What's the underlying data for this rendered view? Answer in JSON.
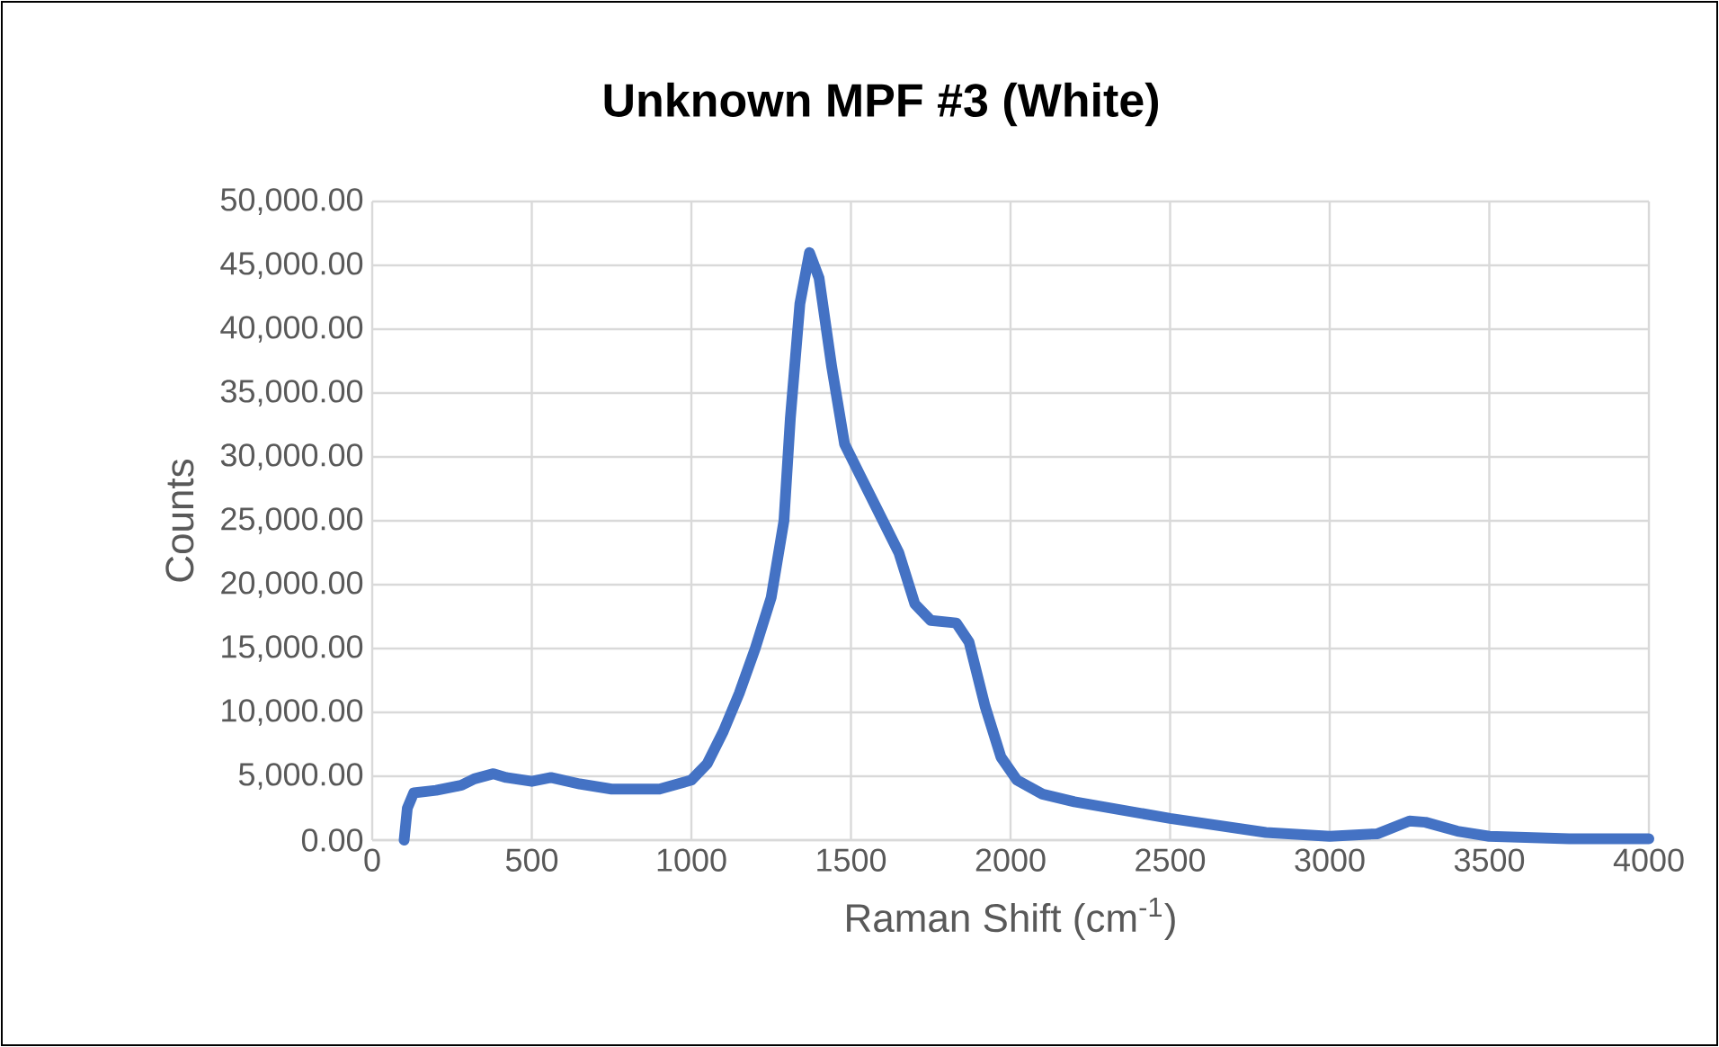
{
  "chart_data": {
    "type": "line",
    "title": "Unknown MPF #3 (White)",
    "xlabel": "Raman Shift (cm$^{-1}$)",
    "ylabel": "Counts",
    "xlim": [
      0,
      4000
    ],
    "xticks": [
      0,
      500,
      1000,
      1500,
      2000,
      2500,
      3000,
      3500,
      4000
    ],
    "ylim": [
      0,
      50000
    ],
    "yticks": [
      {
        "value": 0,
        "label": "0.00"
      },
      {
        "value": 5000,
        "label": "5,000.00"
      },
      {
        "value": 10000,
        "label": "10,000.00"
      },
      {
        "value": 15000,
        "label": "15,000.00"
      },
      {
        "value": 20000,
        "label": "20,000.00"
      },
      {
        "value": 25000,
        "label": "25,000.00"
      },
      {
        "value": 30000,
        "label": "30,000.00"
      },
      {
        "value": 35000,
        "label": "35,000.00"
      },
      {
        "value": 40000,
        "label": "40,000.00"
      },
      {
        "value": 45000,
        "label": "45,000.00"
      },
      {
        "value": 50000,
        "label": "50,000.00"
      }
    ],
    "grid": true,
    "marker": "none",
    "line_style": "solid",
    "series": [
      {
        "color": "#4472c4",
        "x": [
          100,
          110,
          130,
          200,
          280,
          320,
          380,
          420,
          500,
          560,
          650,
          750,
          900,
          1000,
          1050,
          1100,
          1150,
          1200,
          1250,
          1290,
          1310,
          1340,
          1370,
          1400,
          1440,
          1480,
          1530,
          1580,
          1650,
          1700,
          1750,
          1830,
          1870,
          1920,
          1970,
          2020,
          2100,
          2200,
          2500,
          2800,
          3000,
          3150,
          3250,
          3300,
          3400,
          3500,
          3750,
          4000
        ],
        "values": [
          0,
          2500,
          3700,
          3900,
          4300,
          4800,
          5200,
          4900,
          4600,
          4900,
          4400,
          4000,
          4000,
          4700,
          6000,
          8500,
          11500,
          15000,
          19000,
          25000,
          33000,
          42000,
          46000,
          44000,
          37000,
          31000,
          28500,
          26000,
          22500,
          18500,
          17200,
          17000,
          15500,
          10500,
          6500,
          4700,
          3600,
          3000,
          1700,
          600,
          300,
          500,
          1500,
          1400,
          700,
          300,
          100,
          100
        ]
      }
    ]
  }
}
